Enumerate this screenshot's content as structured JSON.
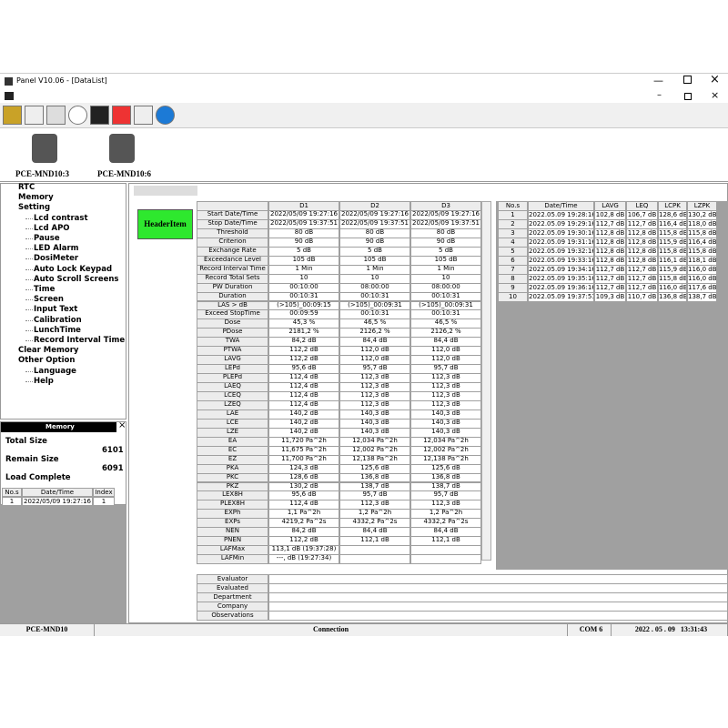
{
  "window": {
    "title": "Panel V10.06 - [DataList]"
  },
  "devices": [
    "PCE-MND10:3",
    "PCE-MND10:6"
  ],
  "tree": [
    {
      "label": "RTC"
    },
    {
      "label": "Memory"
    },
    {
      "label": "Setting",
      "children": [
        "Lcd contrast",
        "Lcd APO",
        "Pause",
        "LED Alarm",
        "DosiMeter",
        "Auto Lock Keypad",
        "Auto Scroll Screens",
        "Time",
        "Screen",
        "Input Text",
        "Calibration",
        "LunchTime",
        "Record Interval Time"
      ]
    },
    {
      "label": "Clear Memory"
    },
    {
      "label": "Other Option",
      "children": [
        "Language",
        "Help"
      ]
    }
  ],
  "memory": {
    "title": "Memory",
    "total_label": "Total Size",
    "total": "6101",
    "remain_label": "Remain Size",
    "remain": "6091",
    "status": "Load Complete",
    "columns": [
      "No.s",
      "Date/Time",
      "Index"
    ],
    "rows": [
      [
        "1",
        "2022/05/09  19:27:16",
        "1"
      ]
    ]
  },
  "header_button": "HeaderItem",
  "data_table": {
    "columns": [
      "D1",
      "D2",
      "D3"
    ],
    "rows": [
      {
        "label": "Start Date/Time",
        "cells": [
          "2022/05/09 19:27:16",
          "2022/05/09 19:27:16",
          "2022/05/09 19:27:16"
        ]
      },
      {
        "label": "Stop Date/Time",
        "cells": [
          "2022/05/09 19:37:51",
          "2022/05/09 19:37:51",
          "2022/05/09 19:37:51"
        ]
      },
      {
        "label": "Threshold",
        "cells": [
          "80 dB",
          "80 dB",
          "80 dB"
        ]
      },
      {
        "label": "Criterion",
        "cells": [
          "90 dB",
          "90 dB",
          "90 dB"
        ]
      },
      {
        "label": "Exchange Rate",
        "cells": [
          "5 dB",
          "5 dB",
          "5 dB"
        ]
      },
      {
        "label": "Exceedance Level",
        "cells": [
          "105 dB",
          "105 dB",
          "105 dB"
        ]
      },
      {
        "label": "Record Interval Time",
        "cells": [
          "1 Min",
          "1 Min",
          "1 Min"
        ]
      },
      {
        "label": "Record Total Sets",
        "cells": [
          "10",
          "10",
          "10"
        ]
      },
      {
        "label": "PW Duration",
        "cells": [
          "00:10:00",
          "08:00:00",
          "08:00:00"
        ]
      },
      {
        "label": "Duration",
        "cells": [
          "00:10:31",
          "00:10:31",
          "00:10:31"
        ]
      },
      {
        "label": "LAS > dB",
        "cells": [
          "(>105)_00:09:15",
          "(>105)_00:09:31",
          "(>105)_00:09:31"
        ]
      },
      {
        "label": "Exceed StopTime",
        "cells": [
          "00:09:59",
          "00:10:31",
          "00:10:31"
        ]
      },
      {
        "label": "Dose",
        "cells": [
          "45,3 %",
          "46,5 %",
          "46,5 %"
        ]
      },
      {
        "label": "PDose",
        "cells": [
          "2181,2 %",
          "2126,2 %",
          "2126,2 %"
        ]
      },
      {
        "label": "TWA",
        "cells": [
          "84,2 dB",
          "84,4 dB",
          "84,4 dB"
        ]
      },
      {
        "label": "PTWA",
        "cells": [
          "112,2 dB",
          "112,0 dB",
          "112,0 dB"
        ]
      },
      {
        "label": "LAVG",
        "cells": [
          "112,2 dB",
          "112,0 dB",
          "112,0 dB"
        ]
      },
      {
        "label": "LEPd",
        "cells": [
          "95,6 dB",
          "95,7 dB",
          "95,7 dB"
        ]
      },
      {
        "label": "PLEPd",
        "cells": [
          "112,4 dB",
          "112,3 dB",
          "112,3 dB"
        ]
      },
      {
        "label": "LAEQ",
        "cells": [
          "112,4 dB",
          "112,3 dB",
          "112,3 dB"
        ]
      },
      {
        "label": "LCEQ",
        "cells": [
          "112,4 dB",
          "112,3 dB",
          "112,3 dB"
        ]
      },
      {
        "label": "LZEQ",
        "cells": [
          "112,4 dB",
          "112,3 dB",
          "112,3 dB"
        ]
      },
      {
        "label": "LAE",
        "cells": [
          "140,2 dB",
          "140,3 dB",
          "140,3 dB"
        ]
      },
      {
        "label": "LCE",
        "cells": [
          "140,2 dB",
          "140,3 dB",
          "140,3 dB"
        ]
      },
      {
        "label": "LZE",
        "cells": [
          "140,2 dB",
          "140,3 dB",
          "140,3 dB"
        ]
      },
      {
        "label": "EA",
        "cells": [
          "11,720 Pa^2h",
          "12,034 Pa^2h",
          "12,034 Pa^2h"
        ]
      },
      {
        "label": "EC",
        "cells": [
          "11,675 Pa^2h",
          "12,002 Pa^2h",
          "12,002 Pa^2h"
        ]
      },
      {
        "label": "EZ",
        "cells": [
          "11,700 Pa^2h",
          "12,138 Pa^2h",
          "12,138 Pa^2h"
        ]
      },
      {
        "label": "PKA",
        "cells": [
          "124,3 dB",
          "125,6 dB",
          "125,6 dB"
        ]
      },
      {
        "label": "PKC",
        "cells": [
          "128,6 dB",
          "136,8 dB",
          "136,8 dB"
        ]
      },
      {
        "label": "PKZ",
        "cells": [
          "130,2 dB",
          "138,7 dB",
          "138,7 dB"
        ]
      },
      {
        "label": "LEX8H",
        "cells": [
          "95,6 dB",
          "95,7 dB",
          "95,7 dB"
        ]
      },
      {
        "label": "PLEX8H",
        "cells": [
          "112,4 dB",
          "112,3 dB",
          "112,3 dB"
        ]
      },
      {
        "label": "EXPh",
        "cells": [
          "1,1 Pa^2h",
          "1,2 Pa^2h",
          "1,2 Pa^2h"
        ]
      },
      {
        "label": "EXPs",
        "cells": [
          "4219,2 Pa^2s",
          "4332,2 Pa^2s",
          "4332,2 Pa^2s"
        ]
      },
      {
        "label": "NEN",
        "cells": [
          "84,2 dB",
          "84,4 dB",
          "84,4 dB"
        ]
      },
      {
        "label": "PNEN",
        "cells": [
          "112,2 dB",
          "112,1 dB",
          "112,1 dB"
        ]
      },
      {
        "label": "LAFMax",
        "cells": [
          "113,1 dB  (19:37:28)"
        ]
      },
      {
        "label": "LAFMin",
        "cells": [
          "---, dB  (19:27:34)"
        ]
      }
    ]
  },
  "records": {
    "columns": [
      "No.s",
      "Date/Time",
      "LAVG",
      "LEQ",
      "LCPK",
      "LZPK"
    ],
    "rows": [
      [
        "1",
        "2022.05.09 19:28:16",
        "102,8 dB",
        "106,7 dB",
        "128,6 dB",
        "130,2 dB"
      ],
      [
        "2",
        "2022.05.09 19:29:16",
        "112,7 dB",
        "112,7 dB",
        "116,4 dB",
        "118,0 dB"
      ],
      [
        "3",
        "2022.05.09 19:30:16",
        "112,8 dB",
        "112,8 dB",
        "115,8 dB",
        "115,8 dB"
      ],
      [
        "4",
        "2022.05.09 19:31:16",
        "112,8 dB",
        "112,8 dB",
        "115,9 dB",
        "116,4 dB"
      ],
      [
        "5",
        "2022.05.09 19:32:16",
        "112,8 dB",
        "112,8 dB",
        "115,8 dB",
        "115,8 dB"
      ],
      [
        "6",
        "2022.05.09 19:33:16",
        "112,8 dB",
        "112,8 dB",
        "116,1 dB",
        "118,1 dB"
      ],
      [
        "7",
        "2022.05.09 19:34:16",
        "112,7 dB",
        "112,7 dB",
        "115,9 dB",
        "116,0 dB"
      ],
      [
        "8",
        "2022.05.09 19:35:16",
        "112,7 dB",
        "112,7 dB",
        "115,8 dB",
        "116,0 dB"
      ],
      [
        "9",
        "2022.05.09 19:36:16",
        "112,7 dB",
        "112,7 dB",
        "116,0 dB",
        "117,6 dB"
      ],
      [
        "10",
        "2022.05.09 19:37:51",
        "109,3 dB",
        "110,7 dB",
        "136,8 dB",
        "138,7 dB"
      ]
    ]
  },
  "info_fields": [
    "Evaluator",
    "Evaluated",
    "Department",
    "Company",
    "Observations"
  ],
  "status_bar": [
    "PCE-MND10",
    "Connection",
    "COM 6",
    "2022 . 05 . 09   13:31:43"
  ]
}
